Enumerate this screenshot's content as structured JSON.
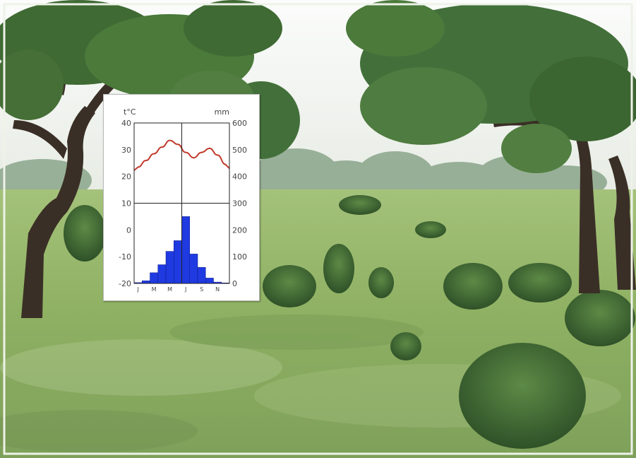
{
  "photo": {
    "subject": "tree savanna landscape",
    "colors": {
      "sky": "#f4f6f4",
      "grass": "#93b267",
      "grass_dark": "#5f8444",
      "foliage": "#3f6a33",
      "trunk": "#3a2f26",
      "frame": "#e9eee2"
    }
  },
  "chart_data": {
    "type": "climate-diagram",
    "left_axis_label": "t°C",
    "right_axis_label": "mm",
    "left_ticks": [
      "40",
      "30",
      "20",
      "10",
      "0",
      "-10",
      "-20"
    ],
    "right_ticks": [
      "600",
      "500",
      "400",
      "300",
      "200",
      "100",
      "0"
    ],
    "month_labels": [
      "J",
      "M",
      "M",
      "J",
      "S",
      "N"
    ],
    "temperature_range": [
      -20,
      40
    ],
    "precipitation_range": [
      0,
      600
    ],
    "temperature_series": {
      "name": "",
      "color": "#c0392b",
      "values": [
        23.5,
        26,
        28.5,
        31,
        33.5,
        32,
        29,
        27,
        29,
        30.5,
        28,
        24.5
      ]
    },
    "precipitation_series": {
      "name": "",
      "color": "#1f3ae0",
      "values": [
        3,
        10,
        40,
        70,
        120,
        160,
        250,
        110,
        60,
        20,
        5,
        2
      ]
    }
  }
}
